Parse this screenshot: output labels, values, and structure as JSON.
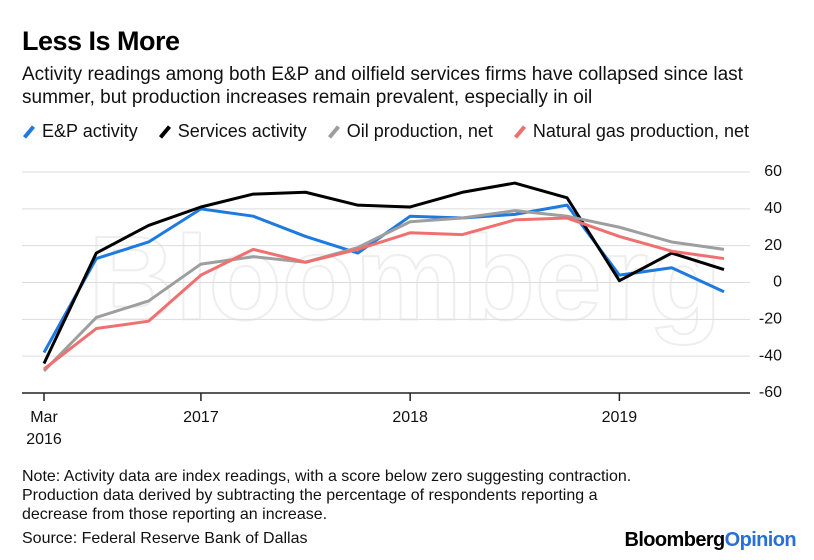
{
  "chart_data": {
    "type": "line",
    "title": "Less Is More",
    "subtitle": "Activity readings among both E&P and oilfield services firms have collapsed since last summer, but production increases remain prevalent, especially in oil",
    "categories": [
      "Mar 2016",
      null,
      null,
      "2017",
      null,
      null,
      null,
      "2018",
      null,
      null,
      null,
      "2019",
      null,
      null
    ],
    "series": [
      {
        "name": "E&P activity",
        "color": "#1f7ae0",
        "values": [
          -38,
          13,
          22,
          40,
          36,
          25,
          16,
          36,
          35,
          37,
          42,
          4,
          8,
          -5
        ]
      },
      {
        "name": "Services activity",
        "color": "#000000",
        "values": [
          -44,
          16,
          31,
          41,
          48,
          49,
          42,
          41,
          49,
          54,
          46,
          1,
          16,
          7
        ]
      },
      {
        "name": "Oil production, net",
        "color": "#9e9e9e",
        "values": [
          -48,
          -19,
          -10,
          10,
          14,
          11,
          19,
          33,
          35,
          39,
          36,
          30,
          22,
          18
        ]
      },
      {
        "name": "Natural gas production, net",
        "color": "#f07070",
        "values": [
          -47,
          -25,
          -21,
          4,
          18,
          11,
          18,
          27,
          26,
          34,
          35,
          25,
          17,
          13
        ]
      }
    ],
    "ylim": [
      -60,
      60
    ],
    "yticks": [
      -60,
      -40,
      -20,
      0,
      20,
      40,
      60
    ],
    "grid": true,
    "watermark": "Bloomberg",
    "note": "Note: Activity data are index readings, with a score below zero suggesting contraction. Production data derived by subtracting the percentage of respondents reporting a decrease from those reporting an increase.",
    "source": "Source: Federal Reserve Bank of Dallas",
    "logo": [
      "Bloomberg",
      "Opinion"
    ]
  }
}
